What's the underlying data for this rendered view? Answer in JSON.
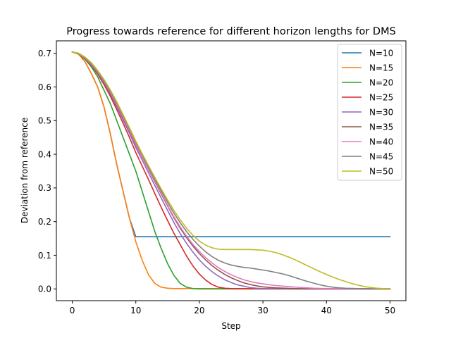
{
  "chart_data": {
    "type": "line",
    "title": "Progress towards reference for different horizon lengths for DMS",
    "xlabel": "Step",
    "ylabel": "Deviation from reference",
    "xlim": [
      -2.5,
      52.5
    ],
    "ylim": [
      -0.035,
      0.737
    ],
    "xticks": [
      0,
      10,
      20,
      30,
      40,
      50
    ],
    "yticks": [
      0.0,
      0.1,
      0.2,
      0.3,
      0.4,
      0.5,
      0.6,
      0.7
    ],
    "ytick_labels": [
      "0.0",
      "0.1",
      "0.2",
      "0.3",
      "0.4",
      "0.5",
      "0.6",
      "0.7"
    ],
    "grid": false,
    "legend_position": "upper right",
    "series": [
      {
        "name": "N=10",
        "color": "#1f77b4",
        "points": [
          [
            0,
            0.704
          ],
          [
            1,
            0.698
          ],
          [
            2,
            0.675
          ],
          [
            3,
            0.64
          ],
          [
            4,
            0.6
          ],
          [
            5,
            0.54
          ],
          [
            6,
            0.46
          ],
          [
            7,
            0.37
          ],
          [
            8,
            0.29
          ],
          [
            9,
            0.21
          ],
          [
            10,
            0.155
          ],
          [
            20,
            0.155
          ],
          [
            30,
            0.155
          ],
          [
            40,
            0.155
          ],
          [
            50,
            0.155
          ]
        ]
      },
      {
        "name": "N=15",
        "color": "#ff7f0e",
        "points": [
          [
            0,
            0.704
          ],
          [
            1,
            0.697
          ],
          [
            2,
            0.675
          ],
          [
            3,
            0.64
          ],
          [
            4,
            0.6
          ],
          [
            5,
            0.54
          ],
          [
            6,
            0.46
          ],
          [
            7,
            0.37
          ],
          [
            8,
            0.29
          ],
          [
            9,
            0.21
          ],
          [
            10,
            0.14
          ],
          [
            11,
            0.085
          ],
          [
            12,
            0.042
          ],
          [
            13,
            0.016
          ],
          [
            14,
            0.005
          ],
          [
            15,
            0.002
          ],
          [
            16,
            0.001
          ],
          [
            20,
            0.001
          ],
          [
            30,
            0.001
          ],
          [
            40,
            0.001
          ],
          [
            50,
            0.001
          ]
        ]
      },
      {
        "name": "N=20",
        "color": "#2ca02c",
        "points": [
          [
            0,
            0.704
          ],
          [
            1,
            0.698
          ],
          [
            2,
            0.682
          ],
          [
            3,
            0.66
          ],
          [
            4,
            0.63
          ],
          [
            5,
            0.59
          ],
          [
            6,
            0.55
          ],
          [
            7,
            0.5
          ],
          [
            8,
            0.45
          ],
          [
            9,
            0.4
          ],
          [
            10,
            0.35
          ],
          [
            11,
            0.29
          ],
          [
            12,
            0.23
          ],
          [
            13,
            0.17
          ],
          [
            14,
            0.12
          ],
          [
            15,
            0.075
          ],
          [
            16,
            0.04
          ],
          [
            17,
            0.016
          ],
          [
            18,
            0.005
          ],
          [
            19,
            0.001
          ],
          [
            20,
            0.0
          ],
          [
            30,
            0.0
          ],
          [
            40,
            0.0
          ],
          [
            50,
            0.0
          ]
        ]
      },
      {
        "name": "N=25",
        "color": "#d62728",
        "points": [
          [
            0,
            0.704
          ],
          [
            1,
            0.699
          ],
          [
            2,
            0.684
          ],
          [
            3,
            0.664
          ],
          [
            4,
            0.638
          ],
          [
            5,
            0.607
          ],
          [
            6,
            0.572
          ],
          [
            7,
            0.533
          ],
          [
            8,
            0.492
          ],
          [
            9,
            0.45
          ],
          [
            10,
            0.405
          ],
          [
            11,
            0.365
          ],
          [
            12,
            0.325
          ],
          [
            13,
            0.283
          ],
          [
            14,
            0.242
          ],
          [
            15,
            0.203
          ],
          [
            16,
            0.165
          ],
          [
            17,
            0.131
          ],
          [
            18,
            0.097
          ],
          [
            19,
            0.068
          ],
          [
            20,
            0.044
          ],
          [
            21,
            0.026
          ],
          [
            22,
            0.013
          ],
          [
            23,
            0.005
          ],
          [
            24,
            0.002
          ],
          [
            25,
            0.001
          ],
          [
            30,
            0.0
          ],
          [
            40,
            0.0
          ],
          [
            50,
            0.0
          ]
        ]
      },
      {
        "name": "N=30",
        "color": "#9467bd",
        "points": [
          [
            0,
            0.704
          ],
          [
            1,
            0.699
          ],
          [
            2,
            0.685
          ],
          [
            3,
            0.666
          ],
          [
            4,
            0.641
          ],
          [
            5,
            0.612
          ],
          [
            6,
            0.578
          ],
          [
            7,
            0.541
          ],
          [
            8,
            0.502
          ],
          [
            9,
            0.462
          ],
          [
            10,
            0.42
          ],
          [
            11,
            0.383
          ],
          [
            12,
            0.345
          ],
          [
            13,
            0.307
          ],
          [
            14,
            0.27
          ],
          [
            15,
            0.233
          ],
          [
            16,
            0.197
          ],
          [
            17,
            0.164
          ],
          [
            18,
            0.135
          ],
          [
            19,
            0.109
          ],
          [
            20,
            0.086
          ],
          [
            21,
            0.067
          ],
          [
            22,
            0.051
          ],
          [
            23,
            0.038
          ],
          [
            24,
            0.027
          ],
          [
            25,
            0.019
          ],
          [
            26,
            0.012
          ],
          [
            27,
            0.008
          ],
          [
            28,
            0.004
          ],
          [
            29,
            0.002
          ],
          [
            30,
            0.001
          ],
          [
            35,
            0.0
          ],
          [
            40,
            0.0
          ],
          [
            50,
            0.0
          ]
        ]
      },
      {
        "name": "N=35",
        "color": "#8c564b",
        "points": [
          [
            0,
            0.704
          ],
          [
            1,
            0.699
          ],
          [
            2,
            0.686
          ],
          [
            3,
            0.668
          ],
          [
            4,
            0.644
          ],
          [
            5,
            0.615
          ],
          [
            6,
            0.582
          ],
          [
            7,
            0.546
          ],
          [
            8,
            0.508
          ],
          [
            9,
            0.468
          ],
          [
            10,
            0.428
          ],
          [
            11,
            0.392
          ],
          [
            12,
            0.355
          ],
          [
            13,
            0.318
          ],
          [
            14,
            0.282
          ],
          [
            15,
            0.246
          ],
          [
            16,
            0.211
          ],
          [
            17,
            0.18
          ],
          [
            18,
            0.152
          ],
          [
            19,
            0.127
          ],
          [
            20,
            0.105
          ],
          [
            21,
            0.086
          ],
          [
            22,
            0.069
          ],
          [
            23,
            0.055
          ],
          [
            24,
            0.043
          ],
          [
            25,
            0.033
          ],
          [
            26,
            0.025
          ],
          [
            27,
            0.018
          ],
          [
            28,
            0.013
          ],
          [
            29,
            0.009
          ],
          [
            30,
            0.006
          ],
          [
            32,
            0.003
          ],
          [
            35,
            0.001
          ],
          [
            40,
            0.0
          ],
          [
            50,
            0.0
          ]
        ]
      },
      {
        "name": "N=40",
        "color": "#e377c2",
        "points": [
          [
            0,
            0.704
          ],
          [
            1,
            0.699
          ],
          [
            2,
            0.686
          ],
          [
            3,
            0.668
          ],
          [
            4,
            0.645
          ],
          [
            5,
            0.617
          ],
          [
            6,
            0.584
          ],
          [
            7,
            0.548
          ],
          [
            8,
            0.51
          ],
          [
            9,
            0.47
          ],
          [
            10,
            0.43
          ],
          [
            11,
            0.394
          ],
          [
            12,
            0.357
          ],
          [
            13,
            0.32
          ],
          [
            14,
            0.284
          ],
          [
            15,
            0.248
          ],
          [
            16,
            0.214
          ],
          [
            17,
            0.184
          ],
          [
            18,
            0.156
          ],
          [
            19,
            0.132
          ],
          [
            20,
            0.111
          ],
          [
            21,
            0.093
          ],
          [
            22,
            0.077
          ],
          [
            23,
            0.063
          ],
          [
            24,
            0.052
          ],
          [
            25,
            0.042
          ],
          [
            26,
            0.034
          ],
          [
            27,
            0.027
          ],
          [
            28,
            0.022
          ],
          [
            29,
            0.018
          ],
          [
            30,
            0.015
          ],
          [
            32,
            0.01
          ],
          [
            34,
            0.007
          ],
          [
            36,
            0.004
          ],
          [
            38,
            0.002
          ],
          [
            40,
            0.001
          ],
          [
            45,
            0.0
          ],
          [
            50,
            0.0
          ]
        ]
      },
      {
        "name": "N=45",
        "color": "#7f7f7f",
        "points": [
          [
            0,
            0.704
          ],
          [
            1,
            0.7
          ],
          [
            2,
            0.688
          ],
          [
            3,
            0.67
          ],
          [
            4,
            0.647
          ],
          [
            5,
            0.62
          ],
          [
            6,
            0.588
          ],
          [
            7,
            0.553
          ],
          [
            8,
            0.515
          ],
          [
            9,
            0.476
          ],
          [
            10,
            0.436
          ],
          [
            11,
            0.399
          ],
          [
            12,
            0.362
          ],
          [
            13,
            0.326
          ],
          [
            14,
            0.291
          ],
          [
            15,
            0.257
          ],
          [
            16,
            0.225
          ],
          [
            17,
            0.196
          ],
          [
            18,
            0.17
          ],
          [
            19,
            0.147
          ],
          [
            20,
            0.127
          ],
          [
            21,
            0.11
          ],
          [
            22,
            0.096
          ],
          [
            23,
            0.085
          ],
          [
            24,
            0.077
          ],
          [
            25,
            0.071
          ],
          [
            26,
            0.067
          ],
          [
            27,
            0.064
          ],
          [
            28,
            0.062
          ],
          [
            29,
            0.059
          ],
          [
            30,
            0.056
          ],
          [
            31,
            0.053
          ],
          [
            32,
            0.049
          ],
          [
            33,
            0.045
          ],
          [
            34,
            0.04
          ],
          [
            35,
            0.034
          ],
          [
            36,
            0.028
          ],
          [
            37,
            0.022
          ],
          [
            38,
            0.017
          ],
          [
            39,
            0.012
          ],
          [
            40,
            0.008
          ],
          [
            41,
            0.005
          ],
          [
            42,
            0.003
          ],
          [
            43,
            0.002
          ],
          [
            45,
            0.001
          ],
          [
            50,
            0.0
          ]
        ]
      },
      {
        "name": "N=50",
        "color": "#bcbd22",
        "points": [
          [
            0,
            0.704
          ],
          [
            1,
            0.7
          ],
          [
            2,
            0.689
          ],
          [
            3,
            0.672
          ],
          [
            4,
            0.649
          ],
          [
            5,
            0.622
          ],
          [
            6,
            0.591
          ],
          [
            7,
            0.556
          ],
          [
            8,
            0.518
          ],
          [
            9,
            0.479
          ],
          [
            10,
            0.439
          ],
          [
            11,
            0.402
          ],
          [
            12,
            0.366
          ],
          [
            13,
            0.331
          ],
          [
            14,
            0.297
          ],
          [
            15,
            0.264
          ],
          [
            16,
            0.233
          ],
          [
            17,
            0.205
          ],
          [
            18,
            0.18
          ],
          [
            19,
            0.159
          ],
          [
            20,
            0.142
          ],
          [
            21,
            0.13
          ],
          [
            22,
            0.122
          ],
          [
            23,
            0.118
          ],
          [
            24,
            0.117
          ],
          [
            25,
            0.117
          ],
          [
            26,
            0.117
          ],
          [
            27,
            0.117
          ],
          [
            28,
            0.117
          ],
          [
            29,
            0.116
          ],
          [
            30,
            0.115
          ],
          [
            31,
            0.112
          ],
          [
            32,
            0.108
          ],
          [
            33,
            0.102
          ],
          [
            34,
            0.095
          ],
          [
            35,
            0.087
          ],
          [
            36,
            0.078
          ],
          [
            37,
            0.069
          ],
          [
            38,
            0.06
          ],
          [
            39,
            0.051
          ],
          [
            40,
            0.043
          ],
          [
            41,
            0.035
          ],
          [
            42,
            0.028
          ],
          [
            43,
            0.022
          ],
          [
            44,
            0.016
          ],
          [
            45,
            0.011
          ],
          [
            46,
            0.007
          ],
          [
            47,
            0.004
          ],
          [
            48,
            0.002
          ],
          [
            49,
            0.001
          ],
          [
            50,
            0.001
          ]
        ]
      }
    ]
  }
}
